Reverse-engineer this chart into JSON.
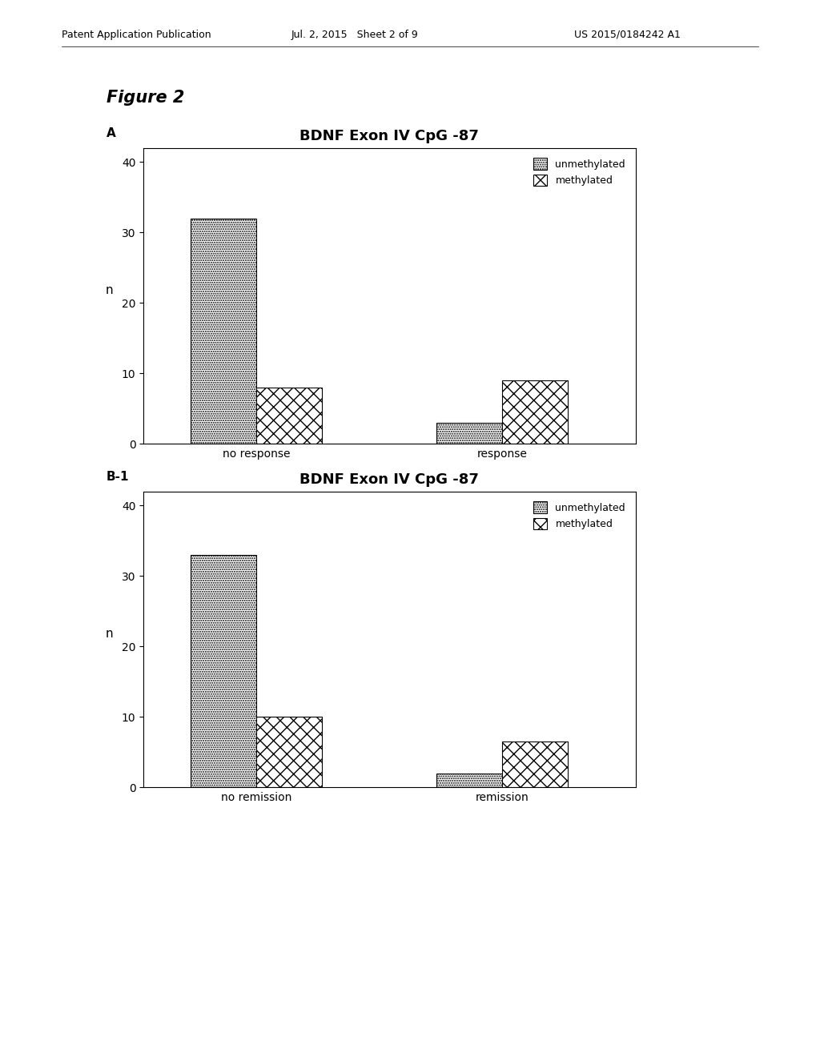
{
  "figure_label": "Figure 2",
  "header_left": "Patent Application Publication",
  "header_center": "Jul. 2, 2015   Sheet 2 of 9",
  "header_right": "US 2015/0184242 A1",
  "charts": [
    {
      "panel_label": "A",
      "title": "BDNF Exon IV CpG -87",
      "groups": [
        "no response",
        "response"
      ],
      "unmethylated": [
        32,
        3
      ],
      "methylated": [
        8,
        9
      ],
      "ylabel": "n",
      "ylim": [
        0,
        42
      ],
      "yticks": [
        0,
        10,
        20,
        30,
        40
      ],
      "legend_labels": [
        "unmethylated",
        "methylated"
      ]
    },
    {
      "panel_label": "B-1",
      "title": "BDNF Exon IV CpG -87",
      "groups": [
        "no remission",
        "remission"
      ],
      "unmethylated": [
        33,
        2
      ],
      "methylated": [
        10,
        6.5
      ],
      "ylabel": "n",
      "ylim": [
        0,
        42
      ],
      "yticks": [
        0,
        10,
        20,
        30,
        40
      ],
      "legend_labels": [
        "unmethylated",
        "methylated"
      ]
    }
  ],
  "header_fontsize": 9,
  "figure_label_fontsize": 15,
  "panel_label_fontsize": 11,
  "title_fontsize": 13,
  "tick_fontsize": 10,
  "ylabel_fontsize": 11,
  "legend_fontsize": 9,
  "bar_width": 0.32,
  "group_positions": [
    1.0,
    2.2
  ],
  "xlim": [
    0.45,
    2.85
  ]
}
